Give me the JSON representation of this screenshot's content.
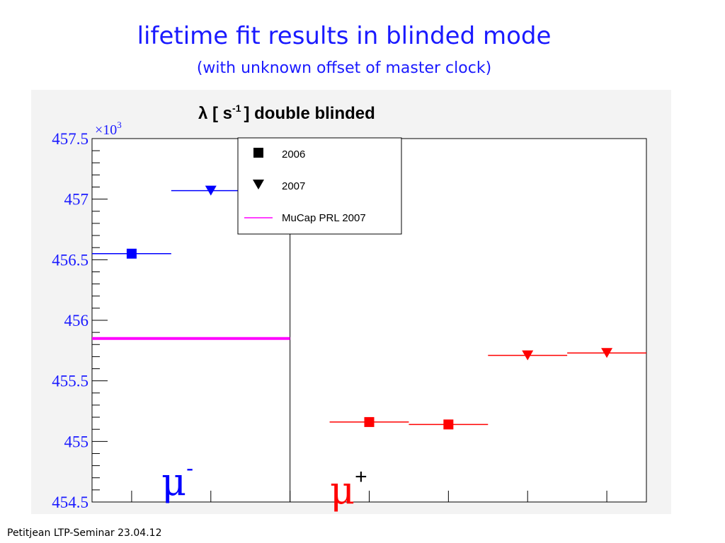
{
  "slide": {
    "title": "lifetime fit results in blinded mode",
    "subtitle": "(with unknown offset of master clock)",
    "footer": "Petitjean LTP-Seminar 23.04.12"
  },
  "chart_data": {
    "type": "scatter",
    "title": "λ [ s",
    "title_sup": "-1",
    "title_end": "] double blinded",
    "axis_multiplier": "×10",
    "axis_multiplier_exp": "3",
    "xlim": [
      0,
      7
    ],
    "xticks": [
      0.5,
      1.5,
      2.5,
      3.5,
      4.5,
      5.5,
      6.5
    ],
    "ylim": [
      454.5,
      457.5
    ],
    "yticks": [
      454.5,
      455,
      455.5,
      456,
      456.5,
      457,
      457.5
    ],
    "divider": 2.5,
    "series": [
      {
        "name": "2006",
        "marker": "square",
        "legend_color": "#000000",
        "x": [
          0.5,
          3.5,
          4.5
        ],
        "xerr": [
          0.5,
          0.5,
          0.5
        ],
        "values": [
          456.55,
          455.16,
          455.14
        ],
        "colors": [
          "#0000ff",
          "#ff0000",
          "#ff0000"
        ]
      },
      {
        "name": "2007",
        "marker": "triangle",
        "legend_color": "#000000",
        "x": [
          1.5,
          5.5,
          6.5
        ],
        "xerr": [
          0.5,
          0.5,
          0.5
        ],
        "values": [
          457.07,
          455.71,
          455.73
        ],
        "colors": [
          "#0000ff",
          "#ff0000",
          "#ff0000"
        ]
      },
      {
        "name": "MuCap PRL 2007",
        "marker": "line",
        "legend_color": "#ff00ff",
        "x": [
          0,
          2.5
        ],
        "values": [
          455.85,
          455.85
        ],
        "colors": [
          "#ff00ff",
          "#ff00ff"
        ]
      }
    ],
    "annotations": [
      {
        "text": "μ",
        "sup": "-",
        "color": "#0000ff"
      },
      {
        "text": "μ",
        "sup": "+",
        "color": "#ff0000"
      }
    ]
  }
}
